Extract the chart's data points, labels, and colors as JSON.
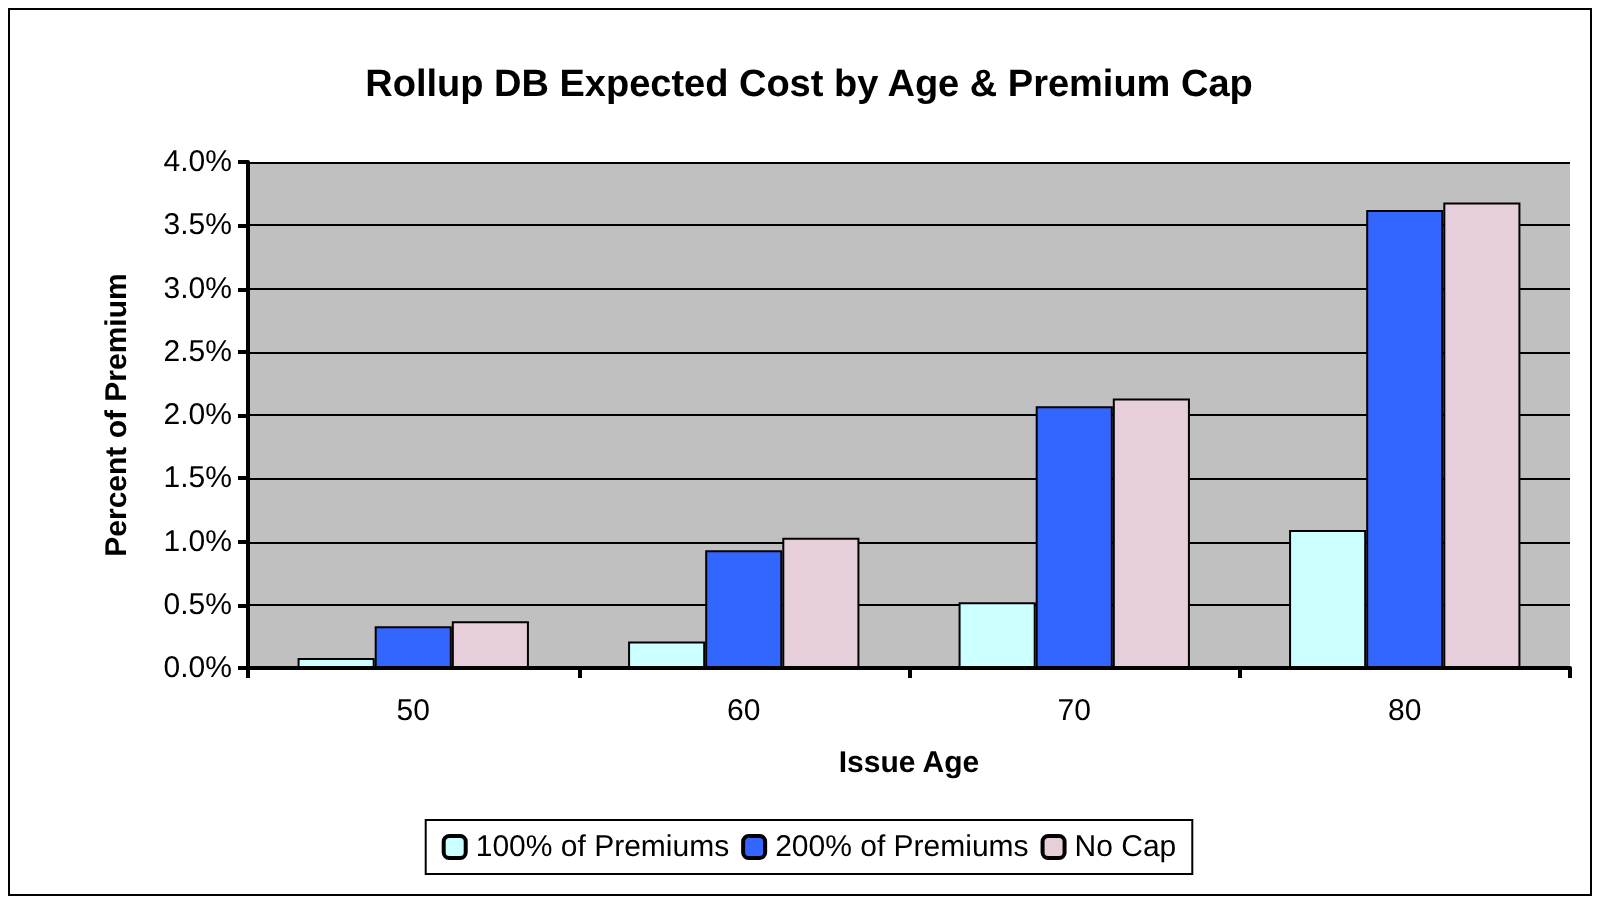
{
  "chart_data": {
    "type": "bar",
    "title": "Rollup DB Expected Cost by Age & Premium Cap",
    "xlabel": "Issue Age",
    "ylabel": "Percent of Premium",
    "categories": [
      "50",
      "60",
      "70",
      "80"
    ],
    "series": [
      {
        "name": "100% of Premiums",
        "color": "#ccffff",
        "values": [
          0.08,
          0.21,
          0.52,
          1.09
        ]
      },
      {
        "name": "200% of Premiums",
        "color": "#3366ff",
        "values": [
          0.33,
          0.93,
          2.07,
          3.62
        ]
      },
      {
        "name": "No Cap",
        "color": "#e6cedb",
        "values": [
          0.37,
          1.03,
          2.13,
          3.68
        ]
      }
    ],
    "ylim": [
      0,
      4
    ],
    "yticks": [
      {
        "value": 0,
        "label": "0.0%"
      },
      {
        "value": 0.5,
        "label": "0.5%"
      },
      {
        "value": 1,
        "label": "1.0%"
      },
      {
        "value": 1.5,
        "label": "1.5%"
      },
      {
        "value": 2,
        "label": "2.0%"
      },
      {
        "value": 2.5,
        "label": "2.5%"
      },
      {
        "value": 3,
        "label": "3.0%"
      },
      {
        "value": 3.5,
        "label": "3.5%"
      },
      {
        "value": 4,
        "label": "4.0%"
      }
    ],
    "grid": "y",
    "legend": "bottom"
  }
}
